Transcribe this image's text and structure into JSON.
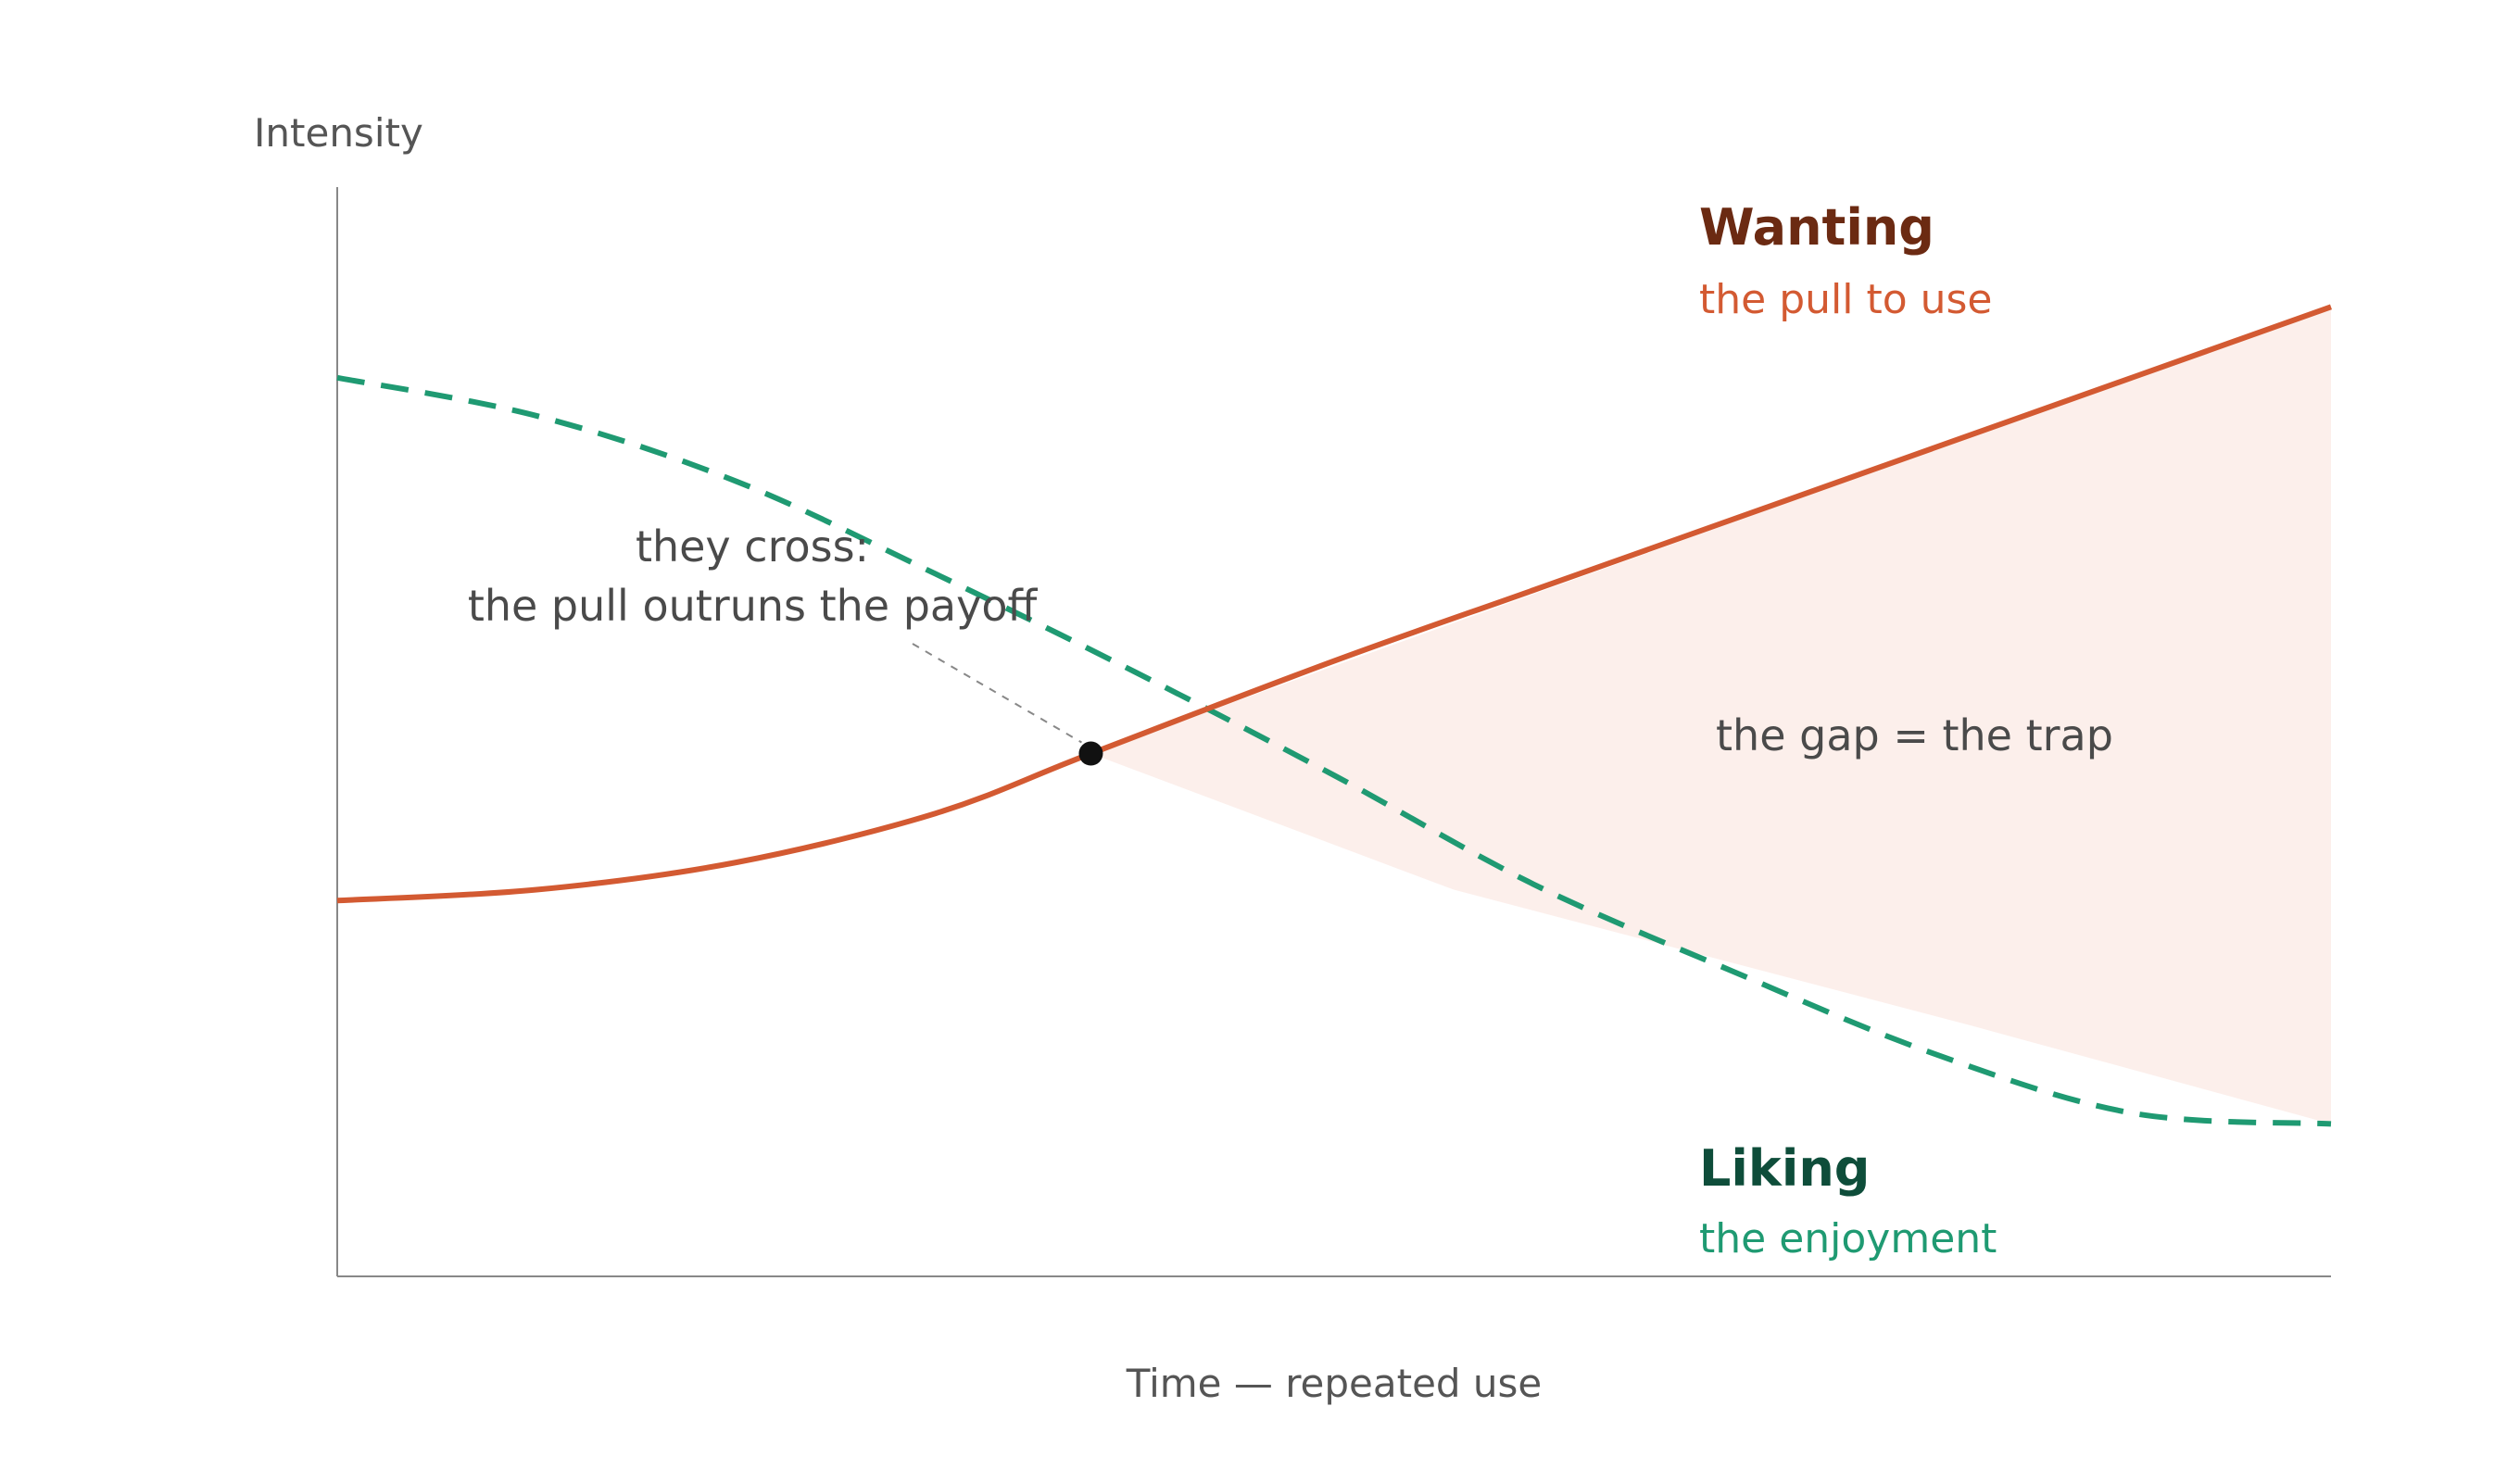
{
  "chart_data": {
    "type": "line",
    "title": "",
    "xlabel": "Time — repeated use",
    "ylabel": "Intensity",
    "xlim": [
      0,
      10
    ],
    "ylim": [
      0,
      10
    ],
    "grid": false,
    "series": [
      {
        "name": "Wanting",
        "subtitle": "the pull to use",
        "color": "#d35a32",
        "title_color": "#6b2a12",
        "style": "solid",
        "x": [
          0,
          1,
          2,
          3,
          3.78,
          5,
          6,
          7,
          8,
          9,
          10
        ],
        "y": [
          3.45,
          3.6,
          4.0,
          4.7,
          4.8,
          5.93,
          6.65,
          7.35,
          8.1,
          8.85,
          8.6
        ]
      },
      {
        "name": "Liking",
        "subtitle": "the enjoyment",
        "color": "#1f9a72",
        "title_color": "#0e4d3a",
        "style": "dashed",
        "x": [
          0,
          1,
          2,
          3,
          4,
          5,
          6,
          7,
          8,
          9,
          10
        ],
        "y": [
          8.25,
          7.9,
          7.3,
          6.45,
          5.55,
          4.6,
          3.6,
          2.8,
          2.05,
          1.5,
          1.4
        ]
      }
    ],
    "marker": {
      "x": 3.78,
      "y": 4.8
    },
    "annotations": {
      "cross_line1": "they cross:",
      "cross_line2": "the pull outruns the payoff",
      "gap": "the gap = the trap"
    },
    "colors": {
      "gap_fill": "#fcefeb",
      "axis": "#888888",
      "leader": "#888888"
    }
  }
}
